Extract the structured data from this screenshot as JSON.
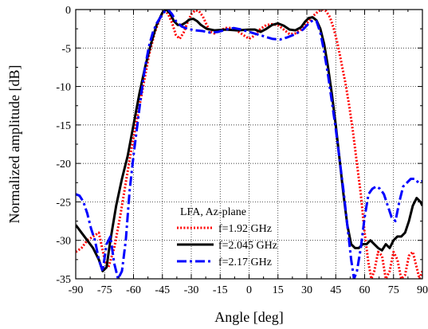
{
  "chart_data": {
    "type": "line",
    "title": "",
    "xlabel": "Angle [deg]",
    "ylabel": "Normalized amplitude [dB]",
    "xlim": [
      -90,
      90
    ],
    "ylim": [
      -35,
      0
    ],
    "xticks": [
      -90,
      -75,
      -60,
      -45,
      -30,
      -15,
      0,
      15,
      30,
      45,
      60,
      75,
      90
    ],
    "yticks": [
      0,
      -5,
      -10,
      -15,
      -20,
      -25,
      -30,
      -35
    ],
    "grid": true,
    "legend": {
      "position": "bottom-left",
      "title": "LFA, Az-plane"
    },
    "series": [
      {
        "name": "f=1.92 GHz",
        "color": "#ff0000",
        "dash": "dotted",
        "points": [
          [
            -90,
            -31.5
          ],
          [
            -87,
            -31
          ],
          [
            -84,
            -30
          ],
          [
            -81,
            -29.5
          ],
          [
            -78,
            -29
          ],
          [
            -75,
            -32.5
          ],
          [
            -73,
            -33.5
          ],
          [
            -70,
            -31
          ],
          [
            -67,
            -27
          ],
          [
            -64,
            -22.5
          ],
          [
            -61,
            -18
          ],
          [
            -58,
            -14
          ],
          [
            -55,
            -10
          ],
          [
            -52,
            -6
          ],
          [
            -49,
            -3
          ],
          [
            -46,
            -1
          ],
          [
            -44,
            0
          ],
          [
            -42,
            -0.6
          ],
          [
            -40,
            -1.7
          ],
          [
            -38,
            -3.3
          ],
          [
            -36,
            -3.8
          ],
          [
            -34,
            -3
          ],
          [
            -32,
            -1.7
          ],
          [
            -30,
            -0.6
          ],
          [
            -28,
            -0.1
          ],
          [
            -26,
            -0.2
          ],
          [
            -24,
            -0.9
          ],
          [
            -22,
            -2
          ],
          [
            -20,
            -2.9
          ],
          [
            -18,
            -3.1
          ],
          [
            -15,
            -2.7
          ],
          [
            -12,
            -2.4
          ],
          [
            -9,
            -2.4
          ],
          [
            -6,
            -2.8
          ],
          [
            -3,
            -3.3
          ],
          [
            0,
            -3.8
          ],
          [
            2,
            -3.5
          ],
          [
            4,
            -3
          ],
          [
            6,
            -2.5
          ],
          [
            9,
            -2
          ],
          [
            12,
            -1.9
          ],
          [
            15,
            -2
          ],
          [
            18,
            -2.6
          ],
          [
            21,
            -3.2
          ],
          [
            24,
            -3.1
          ],
          [
            27,
            -2.6
          ],
          [
            30,
            -1.8
          ],
          [
            33,
            -0.9
          ],
          [
            36,
            -0.2
          ],
          [
            38,
            0
          ],
          [
            40,
            -0.2
          ],
          [
            42,
            -1
          ],
          [
            44,
            -2.5
          ],
          [
            46,
            -4.5
          ],
          [
            48,
            -7
          ],
          [
            50,
            -9.5
          ],
          [
            52,
            -12.5
          ],
          [
            54,
            -16
          ],
          [
            56,
            -20
          ],
          [
            58,
            -24
          ],
          [
            60,
            -29
          ],
          [
            62,
            -33
          ],
          [
            63.5,
            -35
          ],
          [
            65,
            -34
          ],
          [
            67,
            -31.5
          ],
          [
            69,
            -32
          ],
          [
            71,
            -35
          ],
          [
            73,
            -34
          ],
          [
            75,
            -31.5
          ],
          [
            77,
            -32.5
          ],
          [
            79,
            -35
          ],
          [
            81,
            -34.5
          ],
          [
            83,
            -32
          ],
          [
            85,
            -31.5
          ],
          [
            87,
            -33.5
          ],
          [
            88.5,
            -35
          ],
          [
            90,
            -34
          ]
        ]
      },
      {
        "name": "f=2.045 GHz",
        "color": "#000000",
        "dash": "solid",
        "points": [
          [
            -90,
            -28
          ],
          [
            -87,
            -29
          ],
          [
            -84,
            -30
          ],
          [
            -81,
            -31
          ],
          [
            -78,
            -32.5
          ],
          [
            -76,
            -34
          ],
          [
            -74,
            -33.5
          ],
          [
            -72,
            -30
          ],
          [
            -69,
            -25.5
          ],
          [
            -66,
            -22
          ],
          [
            -63,
            -19
          ],
          [
            -60,
            -15
          ],
          [
            -57,
            -11
          ],
          [
            -54,
            -7.5
          ],
          [
            -51,
            -4.5
          ],
          [
            -48,
            -2
          ],
          [
            -45,
            -0.4
          ],
          [
            -43,
            0
          ],
          [
            -41,
            -0.5
          ],
          [
            -39,
            -1.5
          ],
          [
            -37,
            -2
          ],
          [
            -35,
            -2
          ],
          [
            -33,
            -1.7
          ],
          [
            -31,
            -1.3
          ],
          [
            -29,
            -1.2
          ],
          [
            -27,
            -1.5
          ],
          [
            -25,
            -2
          ],
          [
            -22,
            -2.5
          ],
          [
            -18,
            -2.7
          ],
          [
            -12,
            -2.6
          ],
          [
            -6,
            -2.7
          ],
          [
            0,
            -2.6
          ],
          [
            3,
            -2.6
          ],
          [
            6,
            -2.9
          ],
          [
            9,
            -2.5
          ],
          [
            12,
            -2
          ],
          [
            15,
            -1.8
          ],
          [
            18,
            -2.1
          ],
          [
            21,
            -2.6
          ],
          [
            24,
            -2.7
          ],
          [
            27,
            -2.3
          ],
          [
            29,
            -1.6
          ],
          [
            31,
            -1.1
          ],
          [
            33,
            -1
          ],
          [
            35,
            -1.4
          ],
          [
            37,
            -2.5
          ],
          [
            39,
            -4.5
          ],
          [
            41,
            -7.5
          ],
          [
            43,
            -11
          ],
          [
            45,
            -15
          ],
          [
            47,
            -19.5
          ],
          [
            49,
            -24
          ],
          [
            51,
            -28
          ],
          [
            53,
            -30.5
          ],
          [
            55,
            -31
          ],
          [
            57,
            -31
          ],
          [
            59,
            -30.5
          ],
          [
            61,
            -30.5
          ],
          [
            63,
            -30
          ],
          [
            65,
            -30.5
          ],
          [
            67,
            -31
          ],
          [
            69,
            -31.3
          ],
          [
            71,
            -30.5
          ],
          [
            73,
            -31
          ],
          [
            75,
            -30
          ],
          [
            77,
            -29.5
          ],
          [
            79,
            -29.5
          ],
          [
            81,
            -29
          ],
          [
            83,
            -27.5
          ],
          [
            85,
            -25.5
          ],
          [
            87,
            -24.5
          ],
          [
            89,
            -25
          ],
          [
            90,
            -25.5
          ]
        ]
      },
      {
        "name": "f=2.17 GHz",
        "color": "#0000ff",
        "dash": "dashdot",
        "points": [
          [
            -90,
            -24
          ],
          [
            -88,
            -24.2
          ],
          [
            -86,
            -25
          ],
          [
            -84,
            -26.5
          ],
          [
            -82,
            -28.5
          ],
          [
            -80,
            -30
          ],
          [
            -78,
            -32.5
          ],
          [
            -76,
            -34
          ],
          [
            -74,
            -30.5
          ],
          [
            -72,
            -29.5
          ],
          [
            -70,
            -33
          ],
          [
            -68,
            -35
          ],
          [
            -66,
            -34
          ],
          [
            -64,
            -30
          ],
          [
            -62,
            -23.5
          ],
          [
            -60,
            -19
          ],
          [
            -58,
            -15
          ],
          [
            -56,
            -11
          ],
          [
            -54,
            -7.5
          ],
          [
            -52,
            -4.8
          ],
          [
            -50,
            -3
          ],
          [
            -48,
            -1.8
          ],
          [
            -46,
            -1
          ],
          [
            -44,
            -0.3
          ],
          [
            -42,
            0
          ],
          [
            -40,
            -0.6
          ],
          [
            -38,
            -1.5
          ],
          [
            -35,
            -2.2
          ],
          [
            -32,
            -2.5
          ],
          [
            -28,
            -2.7
          ],
          [
            -24,
            -2.8
          ],
          [
            -20,
            -3
          ],
          [
            -16,
            -2.9
          ],
          [
            -12,
            -2.6
          ],
          [
            -8,
            -2.4
          ],
          [
            -4,
            -2.6
          ],
          [
            0,
            -2.9
          ],
          [
            4,
            -3.2
          ],
          [
            8,
            -3.5
          ],
          [
            12,
            -3.8
          ],
          [
            16,
            -3.9
          ],
          [
            20,
            -3.6
          ],
          [
            24,
            -3.2
          ],
          [
            28,
            -2.6
          ],
          [
            31,
            -1.8
          ],
          [
            33,
            -1.4
          ],
          [
            35,
            -1.5
          ],
          [
            37,
            -3
          ],
          [
            39,
            -5.5
          ],
          [
            41,
            -8.5
          ],
          [
            43,
            -12
          ],
          [
            45,
            -15.5
          ],
          [
            47,
            -19.5
          ],
          [
            49,
            -23.5
          ],
          [
            51,
            -28
          ],
          [
            53,
            -32.5
          ],
          [
            54.5,
            -35
          ],
          [
            56,
            -34
          ],
          [
            58,
            -31
          ],
          [
            60,
            -27
          ],
          [
            62,
            -24
          ],
          [
            64,
            -23.3
          ],
          [
            66,
            -23
          ],
          [
            68,
            -23.3
          ],
          [
            70,
            -24
          ],
          [
            72,
            -25.5
          ],
          [
            74,
            -27
          ],
          [
            76,
            -27.5
          ],
          [
            78,
            -25
          ],
          [
            80,
            -23
          ],
          [
            82,
            -22.5
          ],
          [
            84,
            -22
          ],
          [
            86,
            -22
          ],
          [
            88,
            -22.5
          ],
          [
            90,
            -22.3
          ]
        ]
      }
    ]
  }
}
